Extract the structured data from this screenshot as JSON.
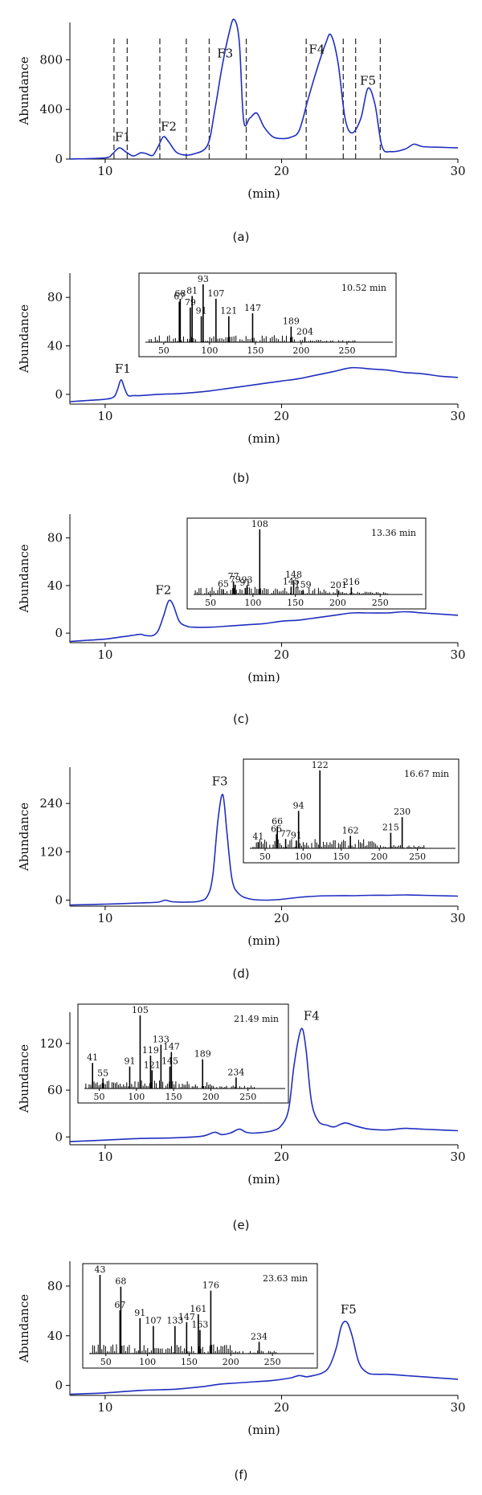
{
  "figure": {
    "axis_xlabel": "(min)",
    "axis_ylabel": "Abundance"
  },
  "chart_data": [
    {
      "panel": "(a)",
      "type": "line",
      "title": "",
      "xlabel": "(min)",
      "ylabel": "Abundance",
      "xlim": [
        8,
        30
      ],
      "ylim": [
        0,
        1100
      ],
      "xticks": [
        10,
        20,
        30
      ],
      "yticks": [
        0,
        400,
        800
      ],
      "series": [
        {
          "name": "chromatogram",
          "x": [
            8,
            10,
            10.4,
            10.8,
            11.2,
            11.6,
            12,
            12.3,
            12.7,
            13.0,
            13.3,
            13.6,
            14.0,
            14.4,
            15.0,
            15.8,
            16.2,
            16.6,
            17.0,
            17.3,
            17.6,
            17.85,
            18.2,
            18.6,
            19.0,
            19.5,
            20.0,
            20.5,
            21.0,
            21.5,
            22.0,
            22.5,
            22.8,
            23.2,
            23.6,
            24.0,
            24.5,
            24.9,
            25.3,
            25.7,
            26.2,
            27.0,
            27.5,
            28.0,
            29.0,
            30
          ],
          "y": [
            0,
            10,
            40,
            90,
            55,
            25,
            50,
            45,
            30,
            100,
            180,
            140,
            60,
            35,
            40,
            110,
            380,
            720,
            1000,
            1125,
            950,
            310,
            330,
            370,
            260,
            180,
            165,
            175,
            230,
            480,
            720,
            930,
            1000,
            780,
            330,
            210,
            330,
            570,
            440,
            100,
            60,
            80,
            120,
            100,
            95,
            90
          ]
        }
      ],
      "annotations": [
        {
          "text": "F1",
          "x": 11.0,
          "y": 145
        },
        {
          "text": "F2",
          "x": 13.6,
          "y": 230
        },
        {
          "text": "F3",
          "x": 16.8,
          "y": 820
        },
        {
          "text": "F4",
          "x": 22.0,
          "y": 850
        },
        {
          "text": "F5",
          "x": 24.9,
          "y": 600
        }
      ],
      "cut_lines": [
        10.5,
        11.25,
        13.1,
        14.6,
        15.9,
        18.0,
        21.4,
        23.5,
        24.2,
        25.6
      ]
    },
    {
      "panel": "(b)",
      "type": "line",
      "title": "",
      "xlabel": "(min)",
      "ylabel": "Abundance",
      "xlim": [
        8,
        30
      ],
      "ylim": [
        -8,
        100
      ],
      "xticks": [
        10,
        20,
        30
      ],
      "yticks": [
        0,
        40,
        80
      ],
      "series": [
        {
          "name": "F1 chromatogram",
          "x": [
            8,
            9,
            10,
            10.5,
            10.7,
            10.9,
            11.1,
            11.3,
            11.6,
            12,
            13,
            14,
            15,
            16,
            17,
            18,
            19,
            20,
            21,
            22,
            23,
            24,
            25,
            26,
            27,
            28,
            29,
            30
          ],
          "y": [
            -6,
            -5,
            -4,
            -2,
            4,
            12,
            5,
            -1,
            -1,
            -1,
            0,
            0.5,
            1.5,
            3,
            5,
            7,
            9,
            11,
            13,
            16,
            19,
            22,
            21,
            20,
            18,
            17,
            15,
            14
          ]
        }
      ],
      "annotations": [
        {
          "text": "F1",
          "x": 11.0,
          "y": 18
        }
      ],
      "inset": {
        "time_label": "10.52 min",
        "xlim": [
          30,
          300
        ],
        "xticks": [
          50,
          100,
          150,
          200,
          250
        ],
        "peaks": [
          {
            "mz": 67,
            "i": 70,
            "label": "67"
          },
          {
            "mz": 68,
            "i": 75,
            "label": "68"
          },
          {
            "mz": 79,
            "i": 60,
            "label": "79"
          },
          {
            "mz": 81,
            "i": 80,
            "label": "81"
          },
          {
            "mz": 91,
            "i": 45,
            "label": "91"
          },
          {
            "mz": 93,
            "i": 100,
            "label": "93"
          },
          {
            "mz": 107,
            "i": 75,
            "label": "107"
          },
          {
            "mz": 121,
            "i": 45,
            "label": "121"
          },
          {
            "mz": 147,
            "i": 50,
            "label": "147"
          },
          {
            "mz": 189,
            "i": 27,
            "label": "189"
          },
          {
            "mz": 204,
            "i": 9,
            "label": "204"
          }
        ]
      }
    },
    {
      "panel": "(c)",
      "type": "line",
      "title": "",
      "xlabel": "(min)",
      "ylabel": "Abundance",
      "xlim": [
        8,
        30
      ],
      "ylim": [
        -8,
        100
      ],
      "xticks": [
        10,
        20,
        30
      ],
      "yticks": [
        0,
        40,
        80
      ],
      "series": [
        {
          "name": "F2 chromatogram",
          "x": [
            8,
            9,
            10,
            11,
            11.5,
            12,
            12.3,
            12.7,
            13.0,
            13.3,
            13.6,
            13.85,
            14.2,
            14.6,
            15,
            16,
            17,
            18,
            19,
            20,
            21,
            22,
            23,
            24,
            25,
            26,
            27,
            28,
            29,
            30
          ],
          "y": [
            -7,
            -6,
            -5,
            -3,
            -2,
            -1,
            -2,
            -2,
            2,
            14,
            27,
            24,
            10,
            6,
            5,
            5,
            6,
            7,
            8,
            10,
            11,
            13,
            15,
            17,
            17,
            17,
            18,
            17,
            16,
            15
          ]
        }
      ],
      "annotations": [
        {
          "text": "F2",
          "x": 13.3,
          "y": 33
        }
      ],
      "inset": {
        "time_label": "13.36 min",
        "xlim": [
          30,
          300
        ],
        "xticks": [
          50,
          100,
          150,
          200,
          250
        ],
        "peaks": [
          {
            "mz": 65,
            "i": 8,
            "label": "65"
          },
          {
            "mz": 77,
            "i": 20,
            "label": "77"
          },
          {
            "mz": 79,
            "i": 15,
            "label": "79"
          },
          {
            "mz": 91,
            "i": 10,
            "label": "91"
          },
          {
            "mz": 93,
            "i": 14,
            "label": "93"
          },
          {
            "mz": 108,
            "i": 100,
            "label": "108"
          },
          {
            "mz": 145,
            "i": 12,
            "label": "145"
          },
          {
            "mz": 148,
            "i": 22,
            "label": "148"
          },
          {
            "mz": 159,
            "i": 7,
            "label": "159"
          },
          {
            "mz": 201,
            "i": 6,
            "label": "201"
          },
          {
            "mz": 216,
            "i": 11,
            "label": "216"
          }
        ]
      }
    },
    {
      "panel": "(d)",
      "type": "line",
      "title": "",
      "xlabel": "(min)",
      "ylabel": "Abundance",
      "xlim": [
        8,
        30
      ],
      "ylim": [
        -15,
        330
      ],
      "xticks": [
        10,
        20,
        30
      ],
      "yticks": [
        0,
        120,
        240
      ],
      "series": [
        {
          "name": "F3 chromatogram",
          "x": [
            8,
            10,
            12,
            13,
            13.4,
            13.8,
            14.5,
            15.3,
            15.8,
            16.1,
            16.4,
            16.67,
            16.9,
            17.2,
            17.6,
            18.2,
            19,
            20,
            21,
            22,
            23,
            24,
            25,
            26,
            27,
            28,
            29,
            30
          ],
          "y": [
            -12,
            -10,
            -7,
            -5,
            0,
            -4,
            -5,
            -3,
            10,
            60,
            200,
            262,
            170,
            50,
            15,
            3,
            0,
            2,
            7,
            10,
            11,
            11,
            12,
            12,
            13,
            12,
            11,
            10
          ]
        }
      ],
      "annotations": [
        {
          "text": "F3",
          "x": 16.5,
          "y": 285
        }
      ],
      "inset": {
        "time_label": "16.67 min",
        "xlim": [
          30,
          300
        ],
        "xticks": [
          50,
          100,
          150,
          200,
          250
        ],
        "peaks": [
          {
            "mz": 41,
            "i": 8,
            "label": "41"
          },
          {
            "mz": 65,
            "i": 18,
            "label": "65"
          },
          {
            "mz": 66,
            "i": 28,
            "label": "66"
          },
          {
            "mz": 77,
            "i": 12,
            "label": "77"
          },
          {
            "mz": 91,
            "i": 10,
            "label": "91"
          },
          {
            "mz": 94,
            "i": 48,
            "label": "94"
          },
          {
            "mz": 122,
            "i": 100,
            "label": "122"
          },
          {
            "mz": 162,
            "i": 16,
            "label": "162"
          },
          {
            "mz": 215,
            "i": 20,
            "label": "215"
          },
          {
            "mz": 230,
            "i": 40,
            "label": "230"
          }
        ]
      }
    },
    {
      "panel": "(e)",
      "type": "line",
      "title": "",
      "xlabel": "(min)",
      "ylabel": "Abundance",
      "xlim": [
        8,
        30
      ],
      "ylim": [
        -10,
        160
      ],
      "xticks": [
        10,
        20,
        30
      ],
      "yticks": [
        0,
        60,
        120
      ],
      "series": [
        {
          "name": "F4 chromatogram",
          "x": [
            8,
            10,
            12,
            14,
            15.5,
            16.2,
            16.6,
            17.1,
            17.6,
            18.0,
            18.5,
            19.5,
            20.0,
            20.4,
            20.7,
            21.0,
            21.2,
            21.4,
            21.7,
            22.1,
            22.6,
            23.0,
            23.6,
            24.2,
            25,
            26,
            27,
            28,
            29,
            30
          ],
          "y": [
            -6,
            -4,
            -2,
            -1,
            1,
            6,
            3,
            5,
            10,
            6,
            5,
            8,
            15,
            35,
            90,
            130,
            138,
            110,
            45,
            20,
            15,
            13,
            18,
            14,
            10,
            9,
            11,
            10,
            9,
            8
          ]
        }
      ],
      "annotations": [
        {
          "text": "F4",
          "x": 21.7,
          "y": 150
        }
      ],
      "inset": {
        "time_label": "21.49 min",
        "xlim": [
          30,
          300
        ],
        "xticks": [
          50,
          100,
          150,
          200,
          250
        ],
        "peaks": [
          {
            "mz": 41,
            "i": 35,
            "label": "41"
          },
          {
            "mz": 55,
            "i": 14,
            "label": "55"
          },
          {
            "mz": 91,
            "i": 30,
            "label": "91"
          },
          {
            "mz": 105,
            "i": 100,
            "label": "105"
          },
          {
            "mz": 119,
            "i": 45,
            "label": "119"
          },
          {
            "mz": 121,
            "i": 25,
            "label": "121"
          },
          {
            "mz": 133,
            "i": 60,
            "label": "133"
          },
          {
            "mz": 145,
            "i": 30,
            "label": "145"
          },
          {
            "mz": 147,
            "i": 50,
            "label": "147"
          },
          {
            "mz": 189,
            "i": 40,
            "label": "189"
          },
          {
            "mz": 234,
            "i": 15,
            "label": "234"
          }
        ]
      }
    },
    {
      "panel": "(f)",
      "type": "line",
      "title": "",
      "xlabel": "(min)",
      "ylabel": "Abundance",
      "xlim": [
        8,
        30
      ],
      "ylim": [
        -8,
        100
      ],
      "xticks": [
        10,
        20,
        30
      ],
      "yticks": [
        0,
        40,
        80
      ],
      "series": [
        {
          "name": "F5 chromatogram",
          "x": [
            8,
            10,
            12,
            14,
            15.5,
            16.5,
            17.5,
            18.5,
            19.5,
            20.5,
            21.0,
            21.4,
            21.8,
            22.3,
            22.7,
            23.1,
            23.4,
            23.7,
            24.0,
            24.4,
            24.9,
            25.5,
            26,
            27,
            28,
            29,
            30
          ],
          "y": [
            -7,
            -6,
            -4,
            -3,
            -1,
            1,
            2,
            3,
            4,
            6,
            8,
            7,
            8,
            10,
            15,
            30,
            48,
            51,
            40,
            18,
            10,
            9,
            9,
            8,
            7,
            6,
            5
          ]
        }
      ],
      "annotations": [
        {
          "text": "F5",
          "x": 23.8,
          "y": 58
        }
      ],
      "inset": {
        "time_label": "23.63 min",
        "xlim": [
          30,
          300
        ],
        "xticks": [
          50,
          100,
          150,
          200,
          250
        ],
        "peaks": [
          {
            "mz": 43,
            "i": 100,
            "label": "43"
          },
          {
            "mz": 67,
            "i": 55,
            "label": "67"
          },
          {
            "mz": 68,
            "i": 85,
            "label": "68"
          },
          {
            "mz": 91,
            "i": 45,
            "label": "91"
          },
          {
            "mz": 107,
            "i": 35,
            "label": "107"
          },
          {
            "mz": 133,
            "i": 35,
            "label": "133"
          },
          {
            "mz": 147,
            "i": 40,
            "label": "147"
          },
          {
            "mz": 161,
            "i": 50,
            "label": "161"
          },
          {
            "mz": 163,
            "i": 30,
            "label": "163"
          },
          {
            "mz": 176,
            "i": 80,
            "label": "176"
          },
          {
            "mz": 234,
            "i": 15,
            "label": "234"
          }
        ]
      }
    }
  ]
}
